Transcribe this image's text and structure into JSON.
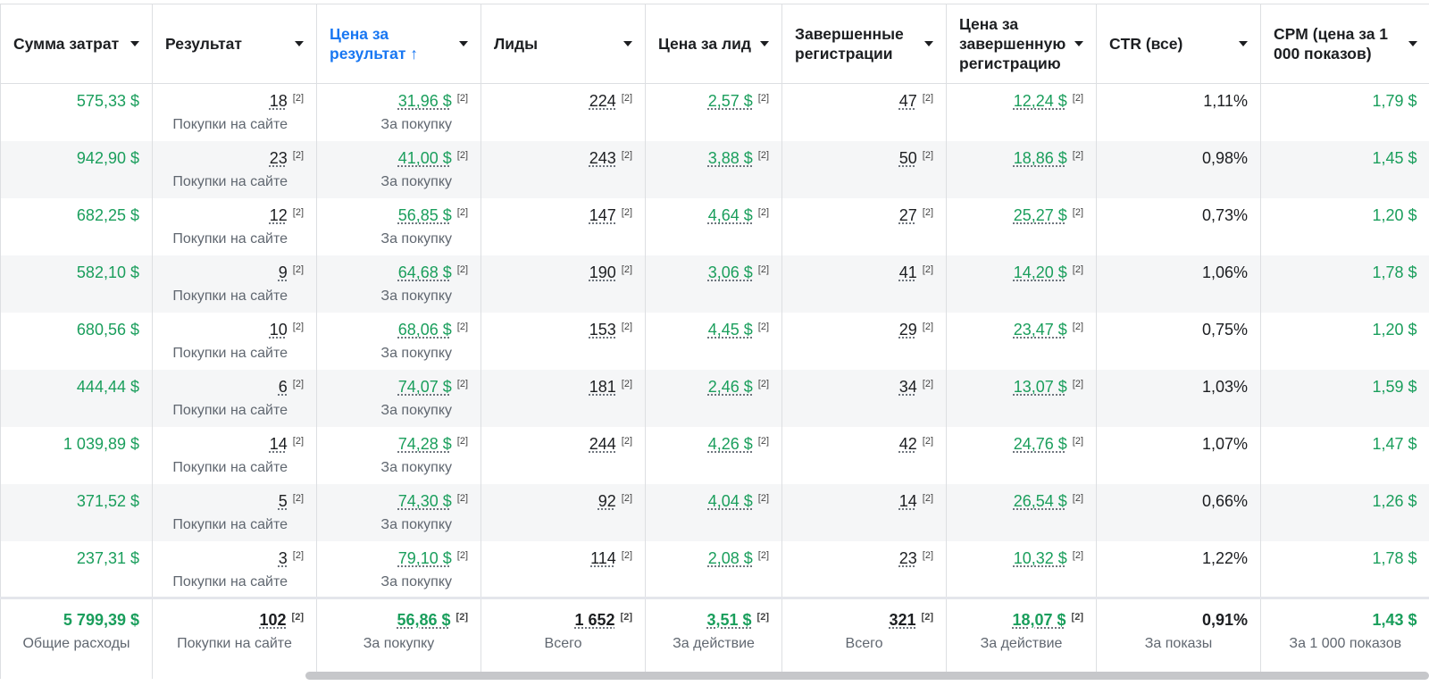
{
  "columns": [
    {
      "label": "Сумма затрат",
      "sorted": false
    },
    {
      "label": "Результат",
      "sorted": false
    },
    {
      "label": "Цена за результат ↑",
      "sorted": true
    },
    {
      "label": "Лиды",
      "sorted": false
    },
    {
      "label": "Цена за лид",
      "sorted": false
    },
    {
      "label": "Завершенные регистрации",
      "sorted": false
    },
    {
      "label": "Цена за завершенную регистрацию",
      "sorted": false
    },
    {
      "label": "CTR (все)",
      "sorted": false
    },
    {
      "label": "CPM (цена за 1 000 показов)",
      "sorted": false
    }
  ],
  "marker": "[2]",
  "rows": [
    {
      "spend": "575,33 $",
      "result": "18",
      "result_sub": "Покупки на сайте",
      "cpr": "31,96 $",
      "cpr_sub": "За покупку",
      "leads": "224",
      "cpl": "2,57 $",
      "reg": "47",
      "cpreg": "12,24 $",
      "ctr": "1,11%",
      "cpm": "1,79 $"
    },
    {
      "spend": "942,90 $",
      "result": "23",
      "result_sub": "Покупки на сайте",
      "cpr": "41,00 $",
      "cpr_sub": "За покупку",
      "leads": "243",
      "cpl": "3,88 $",
      "reg": "50",
      "cpreg": "18,86 $",
      "ctr": "0,98%",
      "cpm": "1,45 $"
    },
    {
      "spend": "682,25 $",
      "result": "12",
      "result_sub": "Покупки на сайте",
      "cpr": "56,85 $",
      "cpr_sub": "За покупку",
      "leads": "147",
      "cpl": "4,64 $",
      "reg": "27",
      "cpreg": "25,27 $",
      "ctr": "0,73%",
      "cpm": "1,20 $"
    },
    {
      "spend": "582,10 $",
      "result": "9",
      "result_sub": "Покупки на сайте",
      "cpr": "64,68 $",
      "cpr_sub": "За покупку",
      "leads": "190",
      "cpl": "3,06 $",
      "reg": "41",
      "cpreg": "14,20 $",
      "ctr": "1,06%",
      "cpm": "1,78 $"
    },
    {
      "spend": "680,56 $",
      "result": "10",
      "result_sub": "Покупки на сайте",
      "cpr": "68,06 $",
      "cpr_sub": "За покупку",
      "leads": "153",
      "cpl": "4,45 $",
      "reg": "29",
      "cpreg": "23,47 $",
      "ctr": "0,75%",
      "cpm": "1,20 $"
    },
    {
      "spend": "444,44 $",
      "result": "6",
      "result_sub": "Покупки на сайте",
      "cpr": "74,07 $",
      "cpr_sub": "За покупку",
      "leads": "181",
      "cpl": "2,46 $",
      "reg": "34",
      "cpreg": "13,07 $",
      "ctr": "1,03%",
      "cpm": "1,59 $"
    },
    {
      "spend": "1 039,89 $",
      "result": "14",
      "result_sub": "Покупки на сайте",
      "cpr": "74,28 $",
      "cpr_sub": "За покупку",
      "leads": "244",
      "cpl": "4,26 $",
      "reg": "42",
      "cpreg": "24,76 $",
      "ctr": "1,07%",
      "cpm": "1,47 $"
    },
    {
      "spend": "371,52 $",
      "result": "5",
      "result_sub": "Покупки на сайте",
      "cpr": "74,30 $",
      "cpr_sub": "За покупку",
      "leads": "92",
      "cpl": "4,04 $",
      "reg": "14",
      "cpreg": "26,54 $",
      "ctr": "0,66%",
      "cpm": "1,26 $"
    },
    {
      "spend": "237,31 $",
      "result": "3",
      "result_sub": "Покупки на сайте",
      "cpr": "79,10 $",
      "cpr_sub": "За покупку",
      "leads": "114",
      "cpl": "2,08 $",
      "reg": "23",
      "cpreg": "10,32 $",
      "ctr": "1,22%",
      "cpm": "1,78 $"
    }
  ],
  "totals": {
    "spend": "5 799,39 $",
    "spend_sub": "Общие расходы",
    "result": "102",
    "result_sub": "Покупки на сайте",
    "cpr": "56,86 $",
    "cpr_sub": "За покупку",
    "leads": "1 652",
    "leads_sub": "Всего",
    "cpl": "3,51 $",
    "cpl_sub": "За действие",
    "reg": "321",
    "reg_sub": "Всего",
    "cpreg": "18,07 $",
    "cpreg_sub": "За действие",
    "ctr": "0,91%",
    "ctr_sub": "За показы",
    "cpm": "1,43 $",
    "cpm_sub": "За 1 000 показов"
  },
  "colors": {
    "money": "#1a9e5c",
    "sorted_header": "#1877f2",
    "alt_row": "#f5f6f7"
  }
}
